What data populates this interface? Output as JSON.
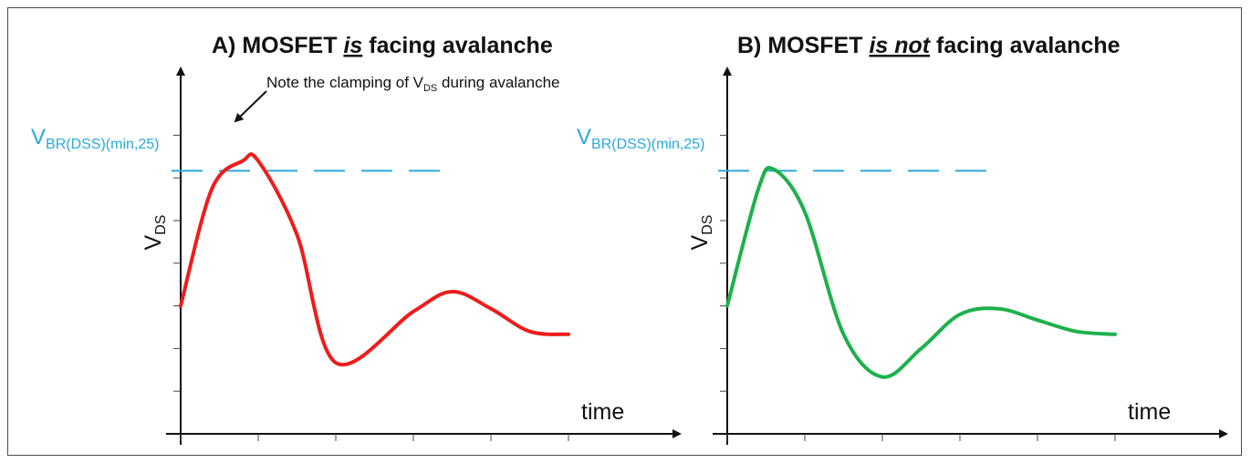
{
  "colors": {
    "panel_a_curve": "#ee1c1c",
    "panel_b_curve": "#1db14b",
    "threshold": "#2aa9dc",
    "axis": "#111111"
  },
  "chart_data": [
    {
      "type": "line",
      "title": "A) MOSFET is facing avalanche",
      "title_parts": {
        "prefix": "A) MOSFET ",
        "emphasis": "is",
        "suffix": " facing avalanche"
      },
      "xlabel": "time",
      "ylabel": {
        "main": "V",
        "sub": "DS"
      },
      "threshold": {
        "main": "V",
        "sub": "BR(DSS)(min,25)",
        "style": "dashed"
      },
      "annotation": {
        "prefix": "Note the clamping of V",
        "sub": "DS",
        "suffix": " during avalanche"
      },
      "x": [
        0,
        0.4,
        0.8,
        1.0,
        1.5,
        2.0,
        3.0,
        3.5,
        4.0,
        4.5,
        5.0
      ],
      "y": [
        4.5,
        8.6,
        9.6,
        9.6,
        7.0,
        2.5,
        4.3,
        5.0,
        4.4,
        3.6,
        3.5
      ],
      "clamp_level": 9.6,
      "ylim": [
        0,
        11
      ],
      "xlim": [
        0,
        5.2
      ],
      "grid": false
    },
    {
      "type": "line",
      "title": "B) MOSFET is not facing avalanche",
      "title_parts": {
        "prefix": "B) MOSFET ",
        "emphasis": "is not",
        "suffix": " facing avalanche"
      },
      "xlabel": "time",
      "ylabel": {
        "main": "V",
        "sub": "DS"
      },
      "threshold": {
        "main": "V",
        "sub": "BR(DSS)(min,25)",
        "style": "dashed"
      },
      "x": [
        0,
        0.4,
        0.6,
        1.0,
        1.5,
        2.0,
        2.5,
        3.0,
        3.5,
        4.0,
        4.5,
        5.0
      ],
      "y": [
        4.5,
        8.6,
        9.3,
        7.8,
        3.5,
        2.0,
        3.0,
        4.2,
        4.4,
        4.0,
        3.6,
        3.5
      ],
      "ylim": [
        0,
        11
      ],
      "xlim": [
        0,
        5.2
      ],
      "grid": false
    }
  ]
}
